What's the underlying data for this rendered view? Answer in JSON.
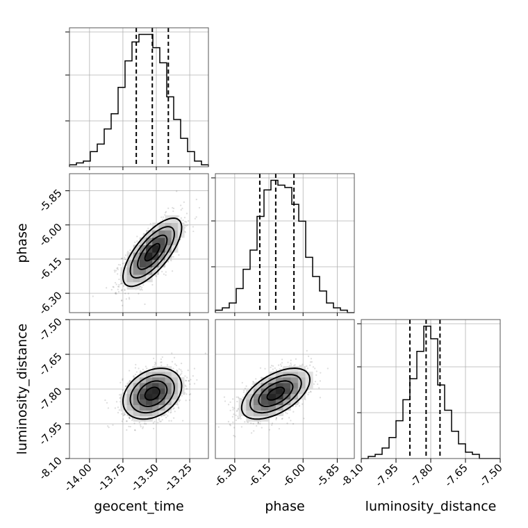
{
  "chart_data": {
    "type": "corner",
    "parameters": [
      "geocent_time",
      "phase",
      "luminosity_distance"
    ],
    "xlabels": {
      "geocent_time": "geocent_time",
      "phase": "phase",
      "luminosity_distance": "luminosity_distance"
    },
    "ylabels": {
      "phase": "phase",
      "luminosity_distance": "luminosity_distance"
    },
    "ranges": {
      "geocent_time": [
        -14.15,
        -13.11
      ],
      "phase": [
        -6.385,
        -5.775
      ],
      "luminosity_distance": [
        -8.1,
        -7.5
      ]
    },
    "ticks": {
      "geocent_time": [
        "-14.00",
        "-13.75",
        "-13.50",
        "-13.25"
      ],
      "phase": [
        "-6.30",
        "-6.15",
        "-6.00",
        "-5.85"
      ],
      "luminosity_distance": [
        "-8.10",
        "-7.95",
        "-7.80",
        "-7.65",
        "-7.50"
      ]
    },
    "marginals": {
      "geocent_time": {
        "bins": [
          -14.15,
          -14.098,
          -14.046,
          -13.994,
          -13.942,
          -13.89,
          -13.838,
          -13.786,
          -13.734,
          -13.682,
          -13.63,
          -13.578,
          -13.526,
          -13.474,
          -13.422,
          -13.37,
          -13.318,
          -13.266,
          -13.214,
          -13.162,
          -13.11
        ],
        "counts": [
          1,
          2,
          3,
          8,
          12,
          20,
          28,
          42,
          56,
          66,
          70,
          70,
          63,
          55,
          37,
          25,
          15,
          8,
          3,
          1
        ],
        "quantiles": [
          -13.65,
          -13.53,
          -13.41
        ]
      },
      "phase": {
        "bins": [
          -6.385,
          -6.3545,
          -6.324,
          -6.2935,
          -6.263,
          -6.2325,
          -6.202,
          -6.1715,
          -6.141,
          -6.1105,
          -6.08,
          -6.0495,
          -6.019,
          -5.9885,
          -5.958,
          -5.9275,
          -5.897,
          -5.8665,
          -5.836,
          -5.8055,
          -5.775
        ],
        "counts": [
          1,
          2,
          4,
          10,
          18,
          26,
          40,
          51,
          55,
          53,
          52,
          45,
          38,
          23,
          15,
          9,
          4,
          2,
          1,
          0
        ],
        "quantiles": [
          -6.19,
          -6.12,
          -6.04
        ]
      },
      "luminosity_distance": {
        "bins": [
          -8.1,
          -8.07,
          -8.04,
          -8.01,
          -7.98,
          -7.95,
          -7.92,
          -7.89,
          -7.86,
          -7.83,
          -7.8,
          -7.77,
          -7.74,
          -7.71,
          -7.68,
          -7.65,
          -7.62,
          -7.59,
          -7.56,
          -7.53,
          -7.5
        ],
        "counts": [
          0,
          1,
          2,
          5,
          10,
          18,
          28,
          38,
          51,
          63,
          57,
          35,
          23,
          13,
          7,
          3,
          2,
          0,
          0,
          0
        ],
        "quantiles": [
          -7.89,
          -7.82,
          -7.76
        ]
      }
    },
    "joint": [
      {
        "x": "geocent_time",
        "y": "phase",
        "correlation": 0.72,
        "center": [
          -13.53,
          -6.12
        ],
        "sigma": [
          0.11,
          0.075
        ]
      },
      {
        "x": "geocent_time",
        "y": "luminosity_distance",
        "correlation": 0.3,
        "center": [
          -13.53,
          -7.82
        ],
        "sigma": [
          0.11,
          0.055
        ]
      },
      {
        "x": "phase",
        "y": "luminosity_distance",
        "correlation": 0.55,
        "center": [
          -6.12,
          -7.82
        ],
        "sigma": [
          0.075,
          0.055
        ]
      }
    ],
    "contour_levels": [
      0.118,
      0.393,
      0.675,
      0.864
    ],
    "quantiles": [
      0.16,
      0.5,
      0.84
    ],
    "grid": true
  }
}
